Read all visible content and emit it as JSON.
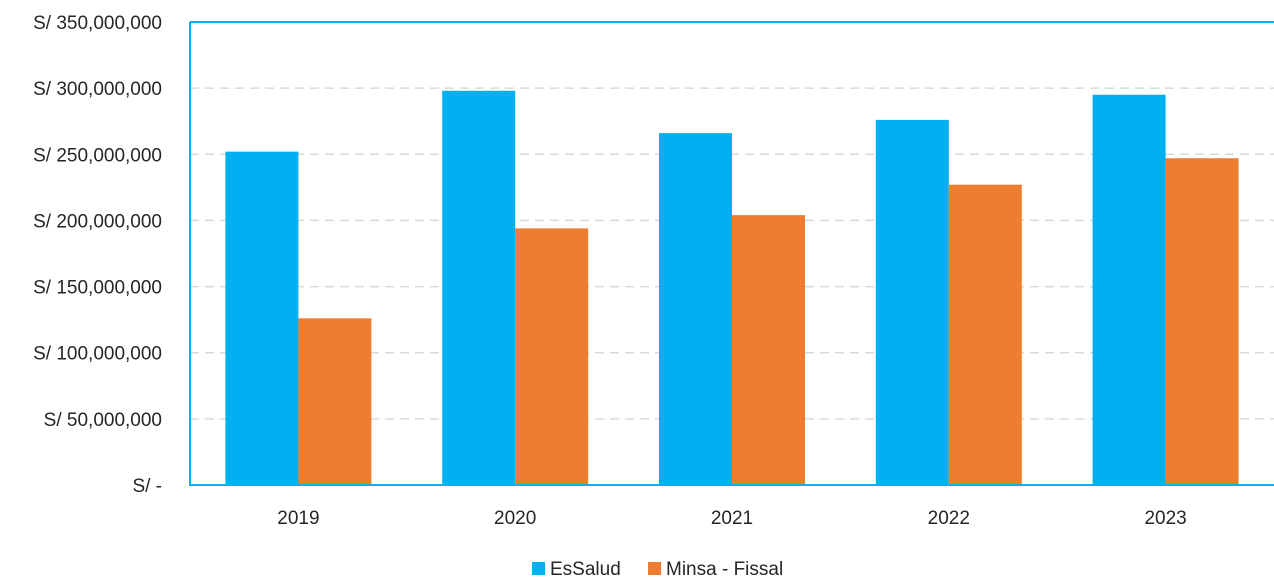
{
  "chart_data": {
    "type": "bar",
    "title": "",
    "xlabel": "",
    "ylabel": "",
    "categories": [
      "2019",
      "2020",
      "2021",
      "2022",
      "2023"
    ],
    "series": [
      {
        "name": "EsSalud",
        "color": "#00b0f0",
        "values": [
          252000000,
          298000000,
          266000000,
          276000000,
          295000000
        ]
      },
      {
        "name": "Minsa - Fissal",
        "color": "#ed7d31",
        "values": [
          126000000,
          194000000,
          204000000,
          227000000,
          247000000
        ]
      }
    ],
    "ylim": [
      0,
      350000000
    ],
    "ytick_values": [
      0,
      50000000,
      100000000,
      150000000,
      200000000,
      250000000,
      300000000,
      350000000
    ],
    "ytick_labels": [
      "S/ -",
      "S/ 50,000,000",
      "S/ 100,000,000",
      "S/ 150,000,000",
      "S/ 200,000,000",
      "S/ 250,000,000",
      "S/ 300,000,000",
      "S/ 350,000,000"
    ],
    "grid": true,
    "legend_position": "bottom-center"
  }
}
